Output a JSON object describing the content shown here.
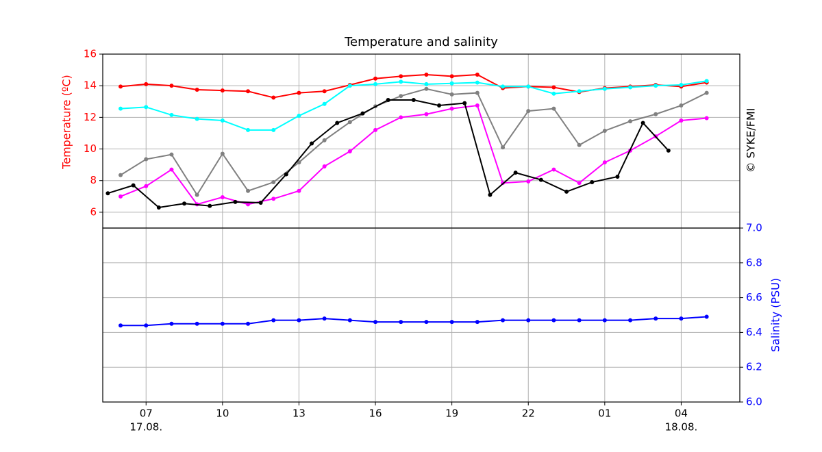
{
  "chart_data": [
    {
      "type": "line",
      "title": "Temperature and salinity",
      "ylabel": "Temperature (ºC)",
      "annotation": "© SYKE/FMI",
      "axis_color": "#ff0000",
      "yaxis_side": "left",
      "grid": true,
      "xlim": [
        5.3,
        30.3
      ],
      "ylim": [
        5,
        16
      ],
      "yticks": [
        6,
        8,
        10,
        12,
        14,
        16
      ],
      "series": [
        {
          "color": "#ff0000",
          "x": [
            6,
            7,
            8,
            9,
            10,
            11,
            12,
            13,
            14,
            15,
            16,
            17,
            18,
            19,
            20,
            21,
            22,
            23,
            24,
            25,
            26,
            27,
            28,
            29
          ],
          "values": [
            13.95,
            14.1,
            14.0,
            13.75,
            13.7,
            13.65,
            13.25,
            13.55,
            13.65,
            14.05,
            14.45,
            14.6,
            14.7,
            14.6,
            14.7,
            13.85,
            13.95,
            13.9,
            13.6,
            13.85,
            13.95,
            14.05,
            13.95,
            14.2
          ]
        },
        {
          "color": "#00ffff",
          "x": [
            6,
            7,
            8,
            9,
            10,
            11,
            12,
            13,
            14,
            15,
            16,
            17,
            18,
            19,
            20,
            21,
            22,
            23,
            24,
            25,
            26,
            27,
            28,
            29
          ],
          "values": [
            12.55,
            12.65,
            12.15,
            11.9,
            11.8,
            11.2,
            11.2,
            12.1,
            12.85,
            14.0,
            14.1,
            14.25,
            14.1,
            14.15,
            14.2,
            13.95,
            13.95,
            13.5,
            13.65,
            13.8,
            13.9,
            14.0,
            14.05,
            14.3
          ]
        },
        {
          "color": "#808080",
          "x": [
            6,
            7,
            8,
            9,
            10,
            11,
            12,
            13,
            14,
            15,
            16,
            17,
            18,
            19,
            20,
            21,
            22,
            23,
            24,
            25,
            26,
            27,
            28,
            29
          ],
          "values": [
            8.35,
            9.35,
            9.65,
            7.1,
            9.7,
            7.35,
            7.9,
            9.15,
            10.55,
            11.7,
            12.7,
            13.35,
            13.8,
            13.45,
            13.55,
            10.1,
            12.4,
            12.55,
            10.25,
            11.15,
            11.75,
            12.2,
            12.75,
            13.55
          ]
        },
        {
          "color": "#ff00ff",
          "x": [
            6,
            7,
            8,
            9,
            10,
            11,
            12,
            13,
            14,
            15,
            16,
            17,
            18,
            19,
            20,
            21,
            22,
            23,
            24,
            25,
            26,
            27,
            28,
            29
          ],
          "values": [
            7.0,
            7.65,
            8.7,
            6.5,
            6.95,
            6.5,
            6.85,
            7.35,
            8.9,
            9.85,
            11.2,
            12.0,
            12.2,
            12.55,
            12.75,
            7.85,
            7.95,
            8.7,
            7.85,
            9.15,
            9.9,
            10.8,
            11.8,
            11.95
          ]
        },
        {
          "color": "#000000",
          "x": [
            5.5,
            6.5,
            7.5,
            8.5,
            9.5,
            10.5,
            11.5,
            12.5,
            13.5,
            14.5,
            15.5,
            16.5,
            17.5,
            18.5,
            19.5,
            20.5,
            21.5,
            22.5,
            23.5,
            24.5,
            25.5,
            26.5,
            27.5
          ],
          "values": [
            7.2,
            7.7,
            6.3,
            6.55,
            6.4,
            6.65,
            6.6,
            8.4,
            10.35,
            11.65,
            12.25,
            13.1,
            13.1,
            12.75,
            12.9,
            7.1,
            8.5,
            8.05,
            7.3,
            7.9,
            8.25,
            11.65,
            9.9
          ]
        }
      ]
    },
    {
      "type": "line",
      "ylabel": "Salinity (PSU)",
      "axis_color": "#0000ff",
      "yaxis_side": "right",
      "grid": true,
      "xlim": [
        5.3,
        30.3
      ],
      "xticks": [
        {
          "value": 7,
          "label": "07"
        },
        10,
        13,
        16,
        19,
        22,
        {
          "value": 25,
          "label": "01"
        },
        {
          "value": 28,
          "label": "04"
        }
      ],
      "date_labels": [
        {
          "value": 7,
          "label": "17.08."
        },
        {
          "value": 28,
          "label": "18.08."
        }
      ],
      "ylim": [
        6,
        7
      ],
      "yticks": [
        {
          "value": 6,
          "label": "6.0"
        },
        6.2,
        6.4,
        6.6,
        6.8,
        {
          "value": 7,
          "label": "7.0"
        }
      ],
      "series": [
        {
          "color": "#0000ff",
          "x": [
            6,
            7,
            8,
            9,
            10,
            11,
            12,
            13,
            14,
            15,
            16,
            17,
            18,
            19,
            20,
            21,
            22,
            23,
            24,
            25,
            26,
            27,
            28,
            29
          ],
          "values": [
            6.44,
            6.44,
            6.45,
            6.45,
            6.45,
            6.45,
            6.47,
            6.47,
            6.48,
            6.47,
            6.46,
            6.46,
            6.46,
            6.46,
            6.46,
            6.47,
            6.47,
            6.47,
            6.47,
            6.47,
            6.47,
            6.48,
            6.48,
            6.49
          ]
        }
      ]
    }
  ]
}
